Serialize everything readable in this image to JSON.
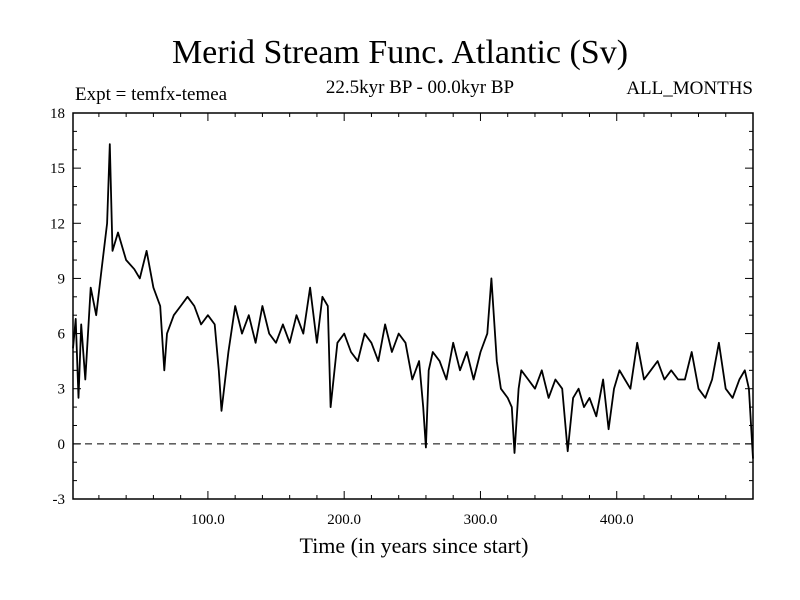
{
  "chart_data": {
    "type": "line",
    "title": "Merid Stream Func. Atlantic (Sv)",
    "subtitle_left": "Expt = temfx-temea",
    "subtitle_center": "22.5kyr BP - 00.0kyr BP",
    "subtitle_right": "ALL_MONTHS",
    "xlabel": "Time (in years since start)",
    "ylabel": "",
    "xlim": [
      1,
      500
    ],
    "ylim": [
      -3,
      18
    ],
    "xticks": [
      100,
      200,
      300,
      400
    ],
    "xtick_labels": [
      "100.0",
      "200.0",
      "300.0",
      "400.0"
    ],
    "yticks": [
      -3,
      0,
      3,
      6,
      9,
      12,
      15,
      18
    ],
    "ytick_labels": [
      "-3",
      "0",
      "3",
      "6",
      "9",
      "12",
      "15",
      "18"
    ],
    "reference_line": {
      "y": 0,
      "style": "dashed"
    },
    "series": [
      {
        "name": "Merid Stream Func. Atlantic",
        "x": [
          1,
          3,
          5,
          7,
          10,
          14,
          18,
          22,
          26,
          28,
          30,
          34,
          40,
          46,
          50,
          55,
          60,
          65,
          68,
          70,
          75,
          80,
          85,
          90,
          95,
          100,
          105,
          108,
          110,
          115,
          120,
          125,
          130,
          135,
          140,
          145,
          150,
          155,
          160,
          165,
          170,
          175,
          180,
          184,
          188,
          190,
          195,
          200,
          205,
          210,
          215,
          220,
          225,
          230,
          235,
          240,
          245,
          250,
          255,
          258,
          260,
          262,
          265,
          270,
          275,
          280,
          285,
          290,
          295,
          300,
          305,
          308,
          312,
          315,
          320,
          323,
          325,
          328,
          330,
          335,
          340,
          345,
          350,
          355,
          360,
          364,
          368,
          372,
          376,
          380,
          385,
          390,
          394,
          398,
          402,
          406,
          410,
          415,
          420,
          425,
          430,
          435,
          440,
          445,
          450,
          455,
          460,
          465,
          470,
          475,
          480,
          485,
          490,
          494,
          497,
          500
        ],
        "values": [
          5.2,
          6.8,
          2.5,
          6.5,
          3.5,
          8.5,
          7.0,
          9.5,
          12.0,
          16.3,
          10.5,
          11.5,
          10.0,
          9.5,
          9.0,
          10.5,
          8.5,
          7.5,
          4.0,
          6.0,
          7.0,
          7.5,
          8.0,
          7.5,
          6.5,
          7.0,
          6.5,
          4.0,
          1.8,
          5.0,
          7.5,
          6.0,
          7.0,
          5.5,
          7.5,
          6.0,
          5.5,
          6.5,
          5.5,
          7.0,
          6.0,
          8.5,
          5.5,
          8.0,
          7.5,
          2.0,
          5.5,
          6.0,
          5.0,
          4.5,
          6.0,
          5.5,
          4.5,
          6.5,
          5.0,
          6.0,
          5.5,
          3.5,
          4.5,
          2.0,
          -0.2,
          4.0,
          5.0,
          4.5,
          3.5,
          5.5,
          4.0,
          5.0,
          3.5,
          5.0,
          6.0,
          9.0,
          4.5,
          3.0,
          2.5,
          2.0,
          -0.5,
          3.0,
          4.0,
          3.5,
          3.0,
          4.0,
          2.5,
          3.5,
          3.0,
          -0.4,
          2.5,
          3.0,
          2.0,
          2.5,
          1.5,
          3.5,
          0.8,
          3.0,
          4.0,
          3.5,
          3.0,
          5.5,
          3.5,
          4.0,
          4.5,
          3.5,
          4.0,
          3.5,
          3.5,
          5.0,
          3.0,
          2.5,
          3.5,
          5.5,
          3.0,
          2.5,
          3.5,
          4.0,
          3.0,
          -0.8
        ]
      }
    ]
  }
}
